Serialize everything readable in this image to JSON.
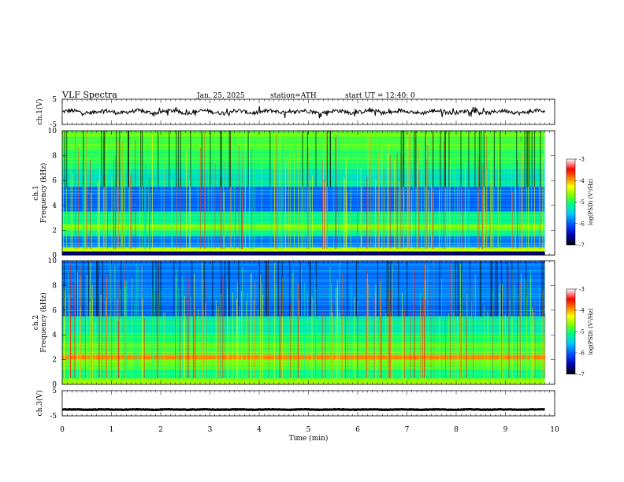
{
  "header": {
    "title": "VLF Spectra",
    "date": "Jan. 25, 2025",
    "station": "station=ATH",
    "start": "start UT =  12:40: 0"
  },
  "chart_data": [
    {
      "id": "ch1-voltage",
      "type": "line",
      "ylabel": "ch.1(V)",
      "ylim": [
        -5,
        5
      ],
      "y_ticks": [
        "5",
        "-5"
      ],
      "xlim": [
        0,
        10
      ],
      "data_extent_min": [
        0,
        9.8
      ],
      "approx_level": 0,
      "approx_noise_amplitude": 1.5
    },
    {
      "id": "ch1-spectrogram",
      "type": "heatmap",
      "ylabel_lines": [
        "ch.1",
        "Frequency  (kHz)"
      ],
      "ylim": [
        0,
        10
      ],
      "y_ticks": [
        "10",
        "8",
        "6",
        "4",
        "2",
        "0"
      ],
      "xlim": [
        0,
        10
      ],
      "data_extent_min": [
        0,
        9.8
      ],
      "colorbar": {
        "label": "log(PSD) (V²/Hz)",
        "range": [
          -7,
          -3
        ],
        "ticks": [
          "-3",
          "-4",
          "-5",
          "-6",
          "-7"
        ],
        "colormap": [
          "#000000",
          "#0000aa",
          "#0040ff",
          "#00c8ff",
          "#00ff80",
          "#80ff00",
          "#ffff00",
          "#ff8000",
          "#ff0000",
          "#ffffff"
        ]
      },
      "bands_khz": [
        {
          "f0": 0.0,
          "f1": 0.3,
          "level": -6.8
        },
        {
          "f0": 0.3,
          "f1": 0.6,
          "level": -4.6
        },
        {
          "f0": 0.6,
          "f1": 1.0,
          "level": -5.7
        },
        {
          "f0": 1.0,
          "f1": 1.5,
          "level": -5.9
        },
        {
          "f0": 1.5,
          "f1": 2.0,
          "level": -5.3
        },
        {
          "f0": 2.0,
          "f1": 2.5,
          "level": -4.8
        },
        {
          "f0": 2.5,
          "f1": 3.5,
          "level": -5.3
        },
        {
          "f0": 3.5,
          "f1": 5.5,
          "level": -5.95
        },
        {
          "f0": 5.5,
          "f1": 7.0,
          "level": -5.4
        },
        {
          "f0": 7.0,
          "f1": 8.5,
          "level": -5.1
        },
        {
          "f0": 8.5,
          "f1": 10.0,
          "level": -4.9
        }
      ]
    },
    {
      "id": "ch2-spectrogram",
      "type": "heatmap",
      "ylabel_lines": [
        "ch.2",
        "Frequency  (kHz)"
      ],
      "ylim": [
        0,
        10
      ],
      "y_ticks": [
        "10",
        "8",
        "6",
        "4",
        "2",
        "0"
      ],
      "xlim": [
        0,
        10
      ],
      "data_extent_min": [
        0,
        9.8
      ],
      "colorbar": {
        "label": "log(PSD) (V²/Hz)",
        "range": [
          -7,
          -3
        ],
        "ticks": [
          "-3",
          "-4",
          "-5",
          "-6",
          "-7"
        ],
        "colormap": [
          "#000000",
          "#0000aa",
          "#0040ff",
          "#00c8ff",
          "#00ff80",
          "#80ff00",
          "#ffff00",
          "#ff8000",
          "#ff0000",
          "#ffffff"
        ]
      },
      "bands_khz": [
        {
          "f0": 0.0,
          "f1": 0.5,
          "level": -4.7
        },
        {
          "f0": 0.5,
          "f1": 1.2,
          "level": -5.2
        },
        {
          "f0": 1.2,
          "f1": 2.0,
          "level": -4.9
        },
        {
          "f0": 2.0,
          "f1": 2.4,
          "level": -3.9
        },
        {
          "f0": 2.4,
          "f1": 3.5,
          "level": -5.0
        },
        {
          "f0": 3.5,
          "f1": 4.2,
          "level": -5.2
        },
        {
          "f0": 4.2,
          "f1": 5.5,
          "level": -5.4
        },
        {
          "f0": 5.5,
          "f1": 10.0,
          "level": -5.95
        }
      ]
    },
    {
      "id": "ch3-voltage",
      "type": "line",
      "ylabel": "ch.3(V)",
      "ylim": [
        -5,
        5
      ],
      "y_ticks": [
        "5",
        "-5"
      ],
      "xlim": [
        0,
        10
      ],
      "data_extent_min": [
        0,
        9.8
      ],
      "approx_level": -2.5,
      "approx_noise_amplitude": 0.2
    }
  ],
  "x_axis": {
    "xlabel": "Time  (min)",
    "ticks": [
      "0",
      "1",
      "2",
      "3",
      "4",
      "5",
      "6",
      "7",
      "8",
      "9",
      "10"
    ],
    "xlim": [
      0,
      10
    ]
  }
}
